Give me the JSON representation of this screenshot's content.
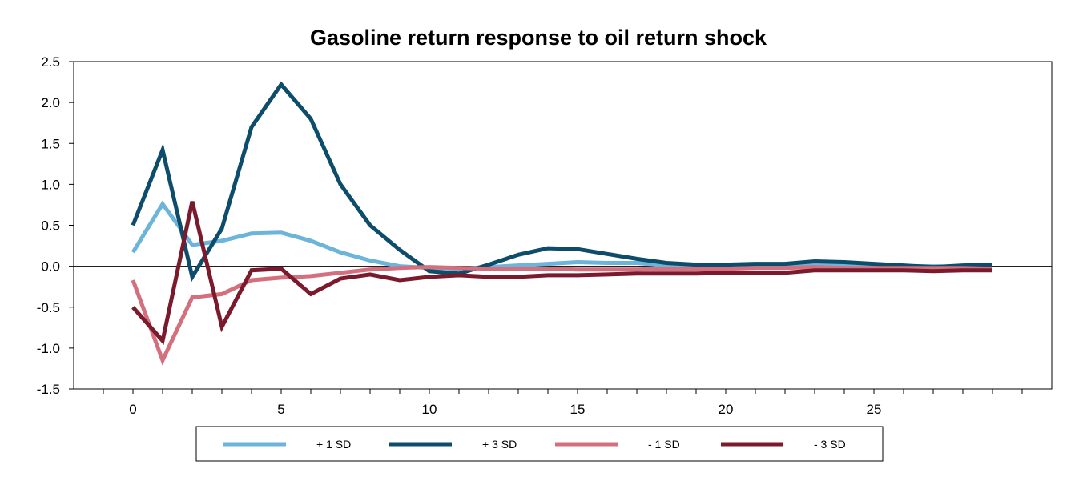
{
  "chart_data": {
    "type": "line",
    "title": "Gasoline return response to oil return shock",
    "xlabel": "",
    "ylabel": "",
    "xlim": [
      -2,
      31
    ],
    "ylim": [
      -1.5,
      2.5
    ],
    "x_ticks": [
      0,
      5,
      10,
      15,
      20,
      25
    ],
    "y_ticks": [
      2.5,
      2.0,
      1.5,
      1.0,
      0.5,
      0.0,
      -0.5,
      -1.0,
      -1.5
    ],
    "y_tick_labels": [
      "2.5",
      "2.0",
      "1.5",
      "1.0",
      "0.5",
      "0.0",
      "-0.5",
      "-1.0",
      "-1.5"
    ],
    "x": [
      0,
      1,
      2,
      3,
      4,
      5,
      6,
      7,
      8,
      9,
      10,
      11,
      12,
      13,
      14,
      15,
      16,
      17,
      18,
      19,
      20,
      21,
      22,
      23,
      24,
      25,
      26,
      27,
      28,
      29
    ],
    "grid": false,
    "legend_position": "bottom",
    "series": [
      {
        "name": "+ 1 SD",
        "color": "#6cb4d9",
        "values": [
          0.17,
          0.76,
          0.26,
          0.31,
          0.4,
          0.41,
          0.31,
          0.17,
          0.07,
          0.0,
          -0.02,
          -0.03,
          -0.01,
          0.01,
          0.03,
          0.05,
          0.04,
          0.04,
          0.01,
          0.01,
          0.0,
          0.01,
          0.01,
          0.02,
          0.01,
          0.01,
          0.0,
          0.0,
          -0.01,
          -0.02
        ]
      },
      {
        "name": "+ 3 SD",
        "color": "#0d4d6b",
        "values": [
          0.5,
          1.42,
          -0.13,
          0.46,
          1.7,
          2.22,
          1.8,
          1.0,
          0.5,
          0.2,
          -0.06,
          -0.09,
          0.02,
          0.14,
          0.22,
          0.21,
          0.15,
          0.09,
          0.04,
          0.02,
          0.02,
          0.03,
          0.03,
          0.06,
          0.05,
          0.03,
          0.01,
          -0.01,
          0.01,
          0.02
        ]
      },
      {
        "name": "- 1 SD",
        "color": "#d46f7e",
        "values": [
          -0.17,
          -1.15,
          -0.38,
          -0.34,
          -0.17,
          -0.14,
          -0.12,
          -0.08,
          -0.04,
          -0.02,
          -0.01,
          -0.02,
          -0.03,
          -0.03,
          -0.03,
          -0.04,
          -0.04,
          -0.04,
          -0.03,
          -0.03,
          -0.03,
          -0.02,
          -0.02,
          -0.01,
          -0.02,
          -0.02,
          -0.02,
          -0.02,
          -0.02,
          -0.03
        ]
      },
      {
        "name": "- 3 SD",
        "color": "#7a1a2c",
        "values": [
          -0.5,
          -0.91,
          0.79,
          -0.74,
          -0.05,
          -0.03,
          -0.34,
          -0.15,
          -0.1,
          -0.17,
          -0.13,
          -0.11,
          -0.13,
          -0.13,
          -0.11,
          -0.11,
          -0.1,
          -0.09,
          -0.09,
          -0.09,
          -0.08,
          -0.08,
          -0.08,
          -0.05,
          -0.05,
          -0.05,
          -0.05,
          -0.06,
          -0.05,
          -0.05
        ]
      }
    ]
  }
}
